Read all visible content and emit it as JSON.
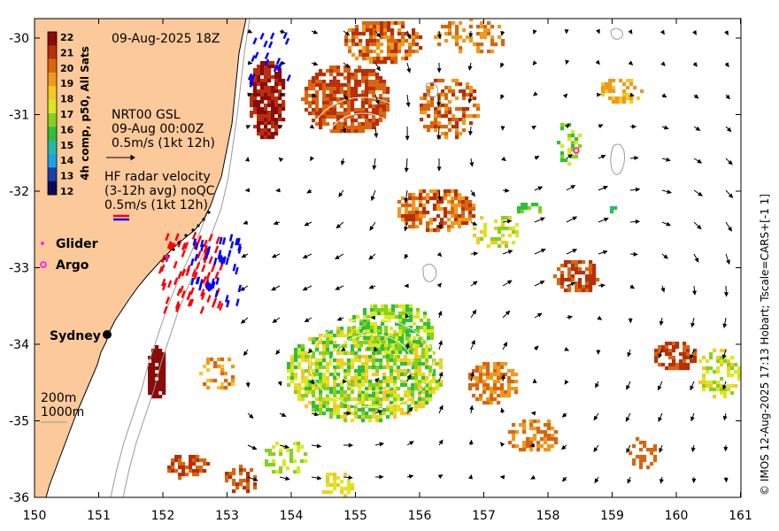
{
  "map": {
    "timestamp": "09-Aug-2025 18Z",
    "colorbar": {
      "title": "4h comp, p50, All Sats",
      "ticks": [
        "22",
        "21",
        "20",
        "19",
        "18",
        "17",
        "16",
        "15",
        "14",
        "13",
        "12"
      ],
      "colors": [
        "#8b0a0a",
        "#b8300a",
        "#d9660f",
        "#ee9a1d",
        "#f4c927",
        "#dbe81f",
        "#86d11f",
        "#2fbf3a",
        "#25b8a8",
        "#1aa3e6",
        "#1a3fa8",
        "#0a0a5a"
      ]
    },
    "legend": {
      "nrt_line1": "NRT00 GSL",
      "nrt_line2": "09-Aug 00:00Z",
      "nrt_line3": "0.5m/s (1kt 12h)",
      "hf_line1": "HF radar velocity",
      "hf_line2": "(3-12h avg) noQC",
      "hf_line3": "0.5m/s (1kt 12h)",
      "glider_label": "Glider",
      "argo_label": "Argo",
      "city_label": "Sydney",
      "isobath_200": "200m",
      "isobath_1000": "1000m"
    },
    "credit": "© IMOS 12-Aug-2025 17:13 Hobart; Tscale=CARS+[-1 1]",
    "x_ticks": [
      "150",
      "151",
      "152",
      "153",
      "154",
      "155",
      "156",
      "157",
      "158",
      "159",
      "160",
      "161"
    ],
    "y_ticks": [
      "-30",
      "-31",
      "-32",
      "-33",
      "-34",
      "-35",
      "-36"
    ],
    "colors": {
      "land": "#fbc99a",
      "coast": "#000000",
      "isobath": "#9a9a9a",
      "arrow": "#000000",
      "hf_red": "#ff0000",
      "hf_blue": "#0000ff",
      "glider": "#ff00ff"
    }
  }
}
